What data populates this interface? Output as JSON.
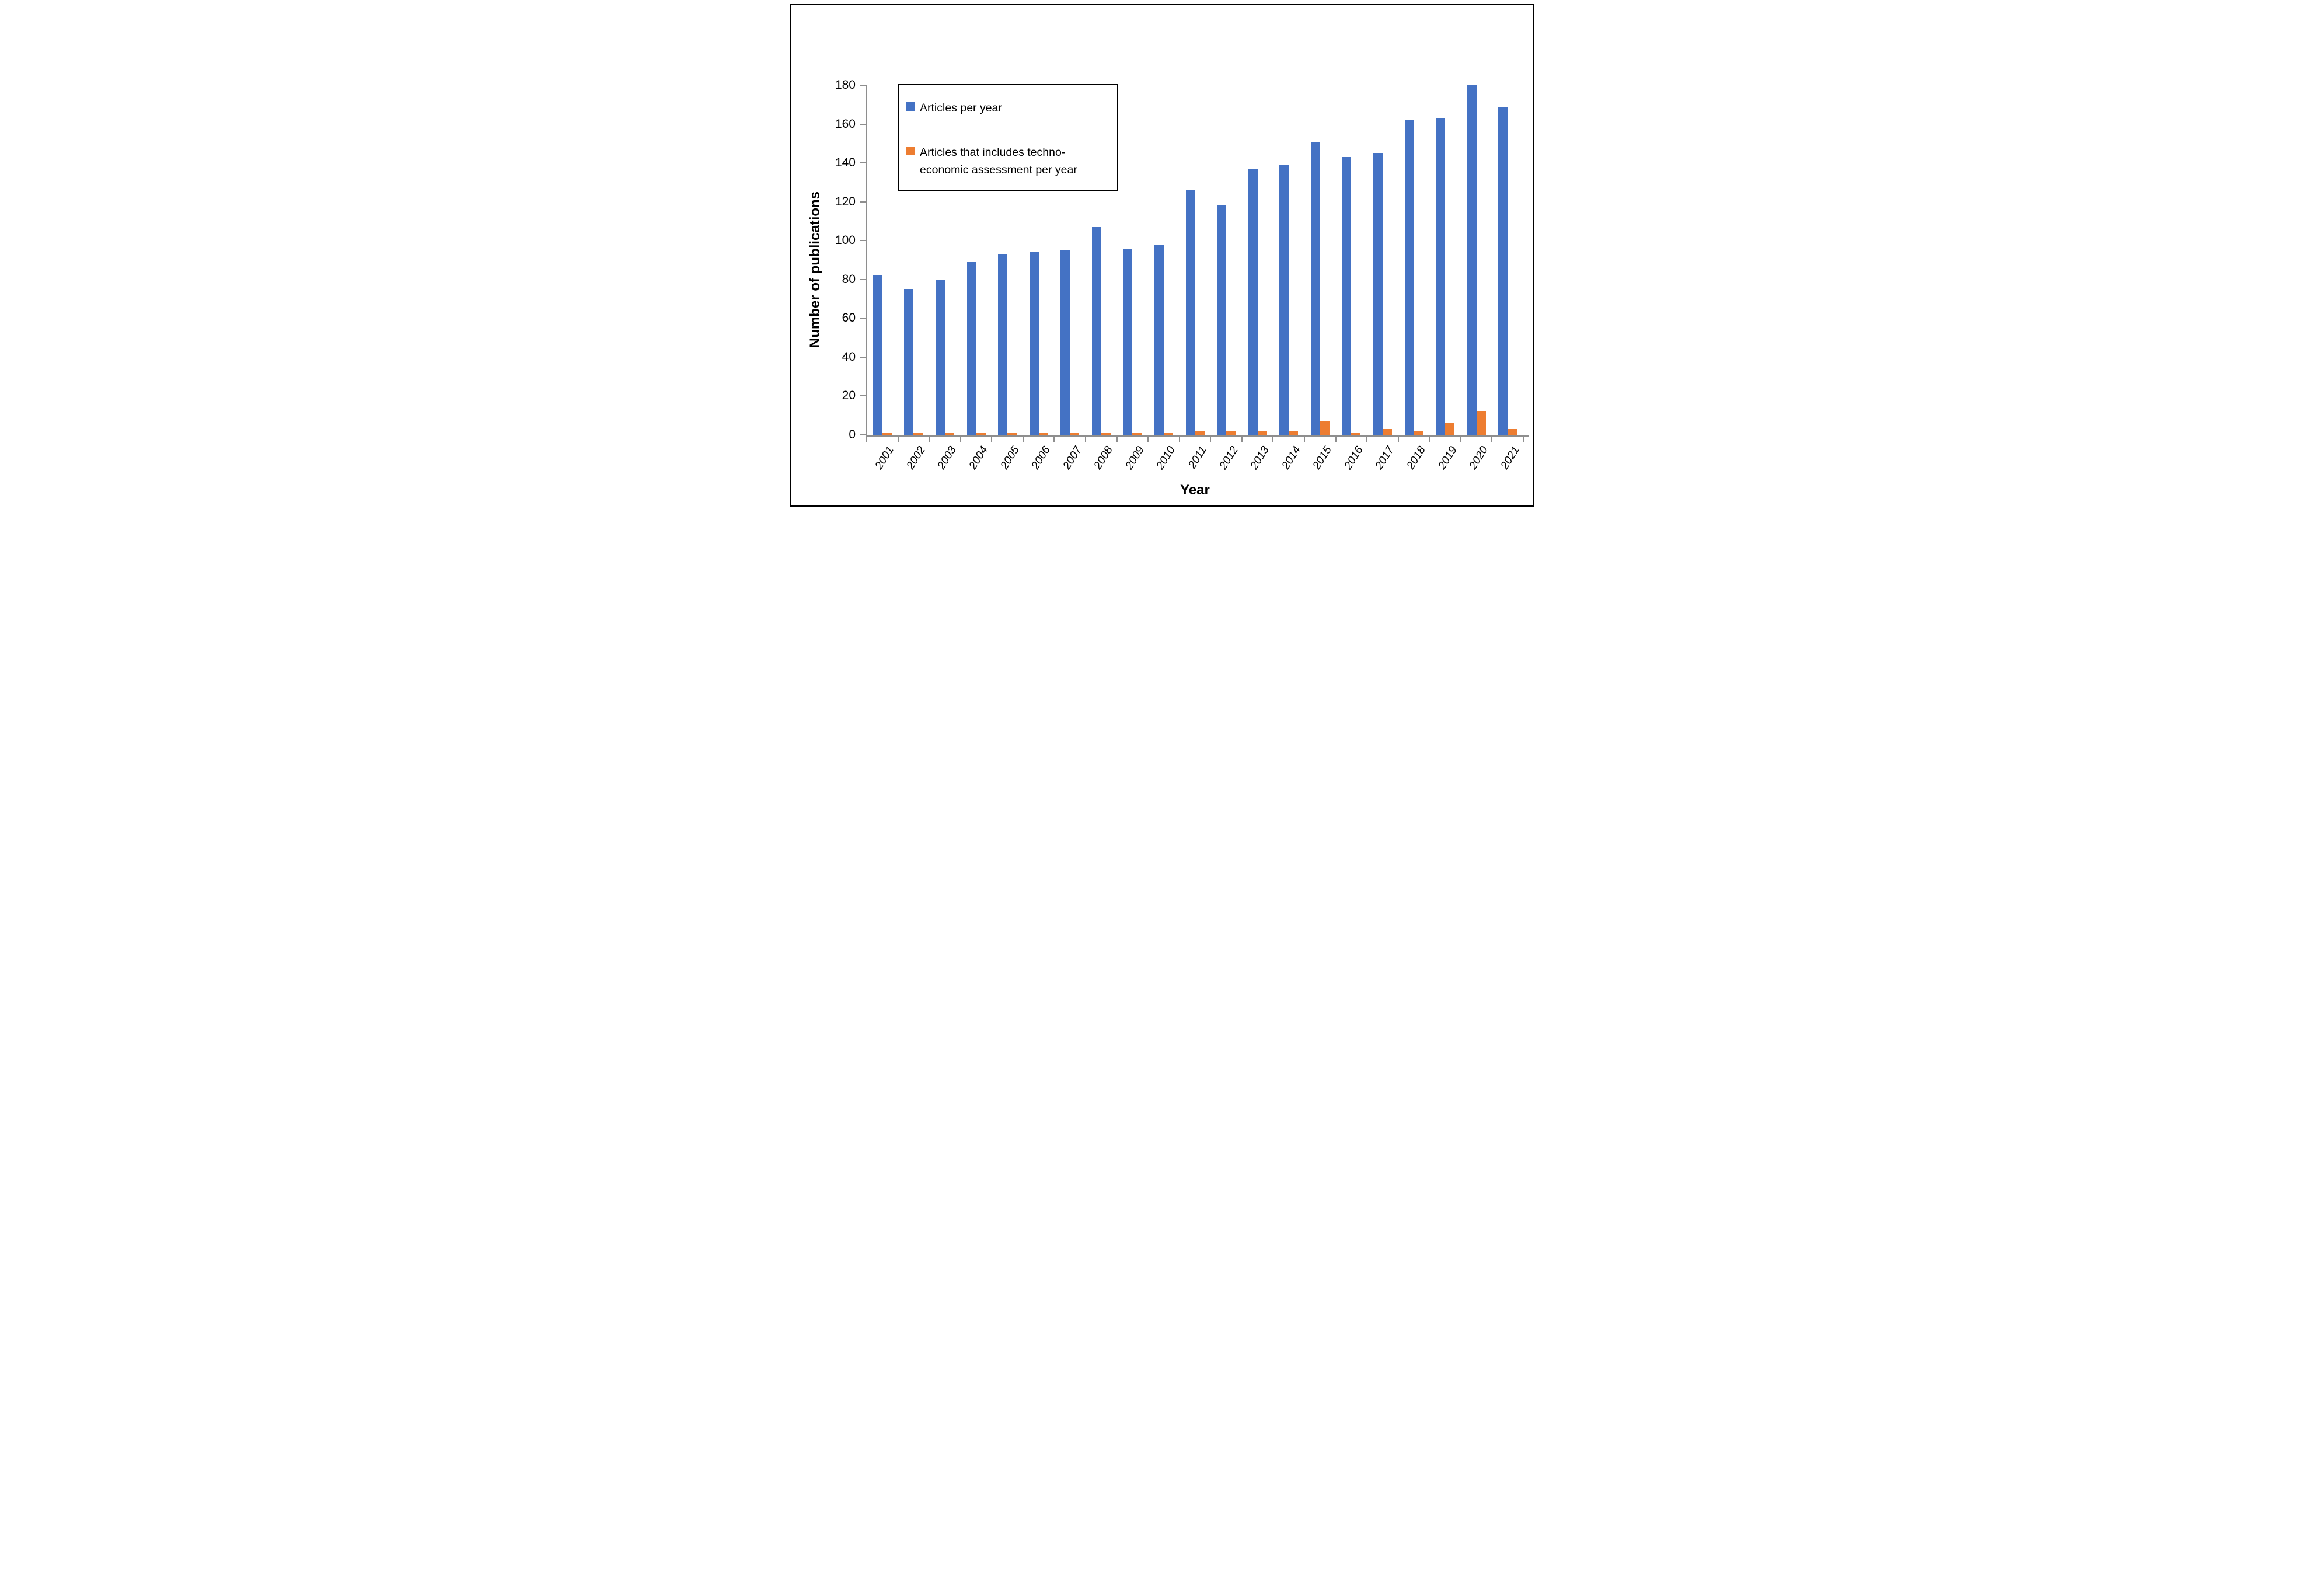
{
  "chart_data": {
    "type": "bar",
    "title": "",
    "categories": [
      "2001",
      "2002",
      "2003",
      "2004",
      "2005",
      "2006",
      "2007",
      "2008",
      "2009",
      "2010",
      "2011",
      "2012",
      "2013",
      "2014",
      "2015",
      "2016",
      "2017",
      "2018",
      "2019",
      "2020",
      "2021"
    ],
    "series": [
      {
        "name": "Articles per year",
        "color": "#4472C4",
        "values": [
          82,
          75,
          80,
          89,
          93,
          94,
          95,
          107,
          96,
          98,
          126,
          118,
          137,
          139,
          151,
          143,
          145,
          162,
          163,
          180,
          169
        ]
      },
      {
        "name": "Articles that includes techno-economic assessment per year",
        "color": "#ED7D31",
        "values": [
          1,
          1,
          1,
          1,
          1,
          1,
          1,
          1,
          1,
          1,
          2,
          2,
          2,
          2,
          7,
          1,
          3,
          2,
          6,
          12,
          3
        ]
      }
    ],
    "xlabel": "Year",
    "ylabel": "Number of publications",
    "ylim": [
      0,
      180
    ],
    "ytick_step": 20,
    "yticks": [
      "0",
      "20",
      "40",
      "60",
      "80",
      "100",
      "120",
      "140",
      "160",
      "180"
    ],
    "grid": false,
    "legend_position": "top-left-inside",
    "axis_color": "#8e8e8e"
  }
}
